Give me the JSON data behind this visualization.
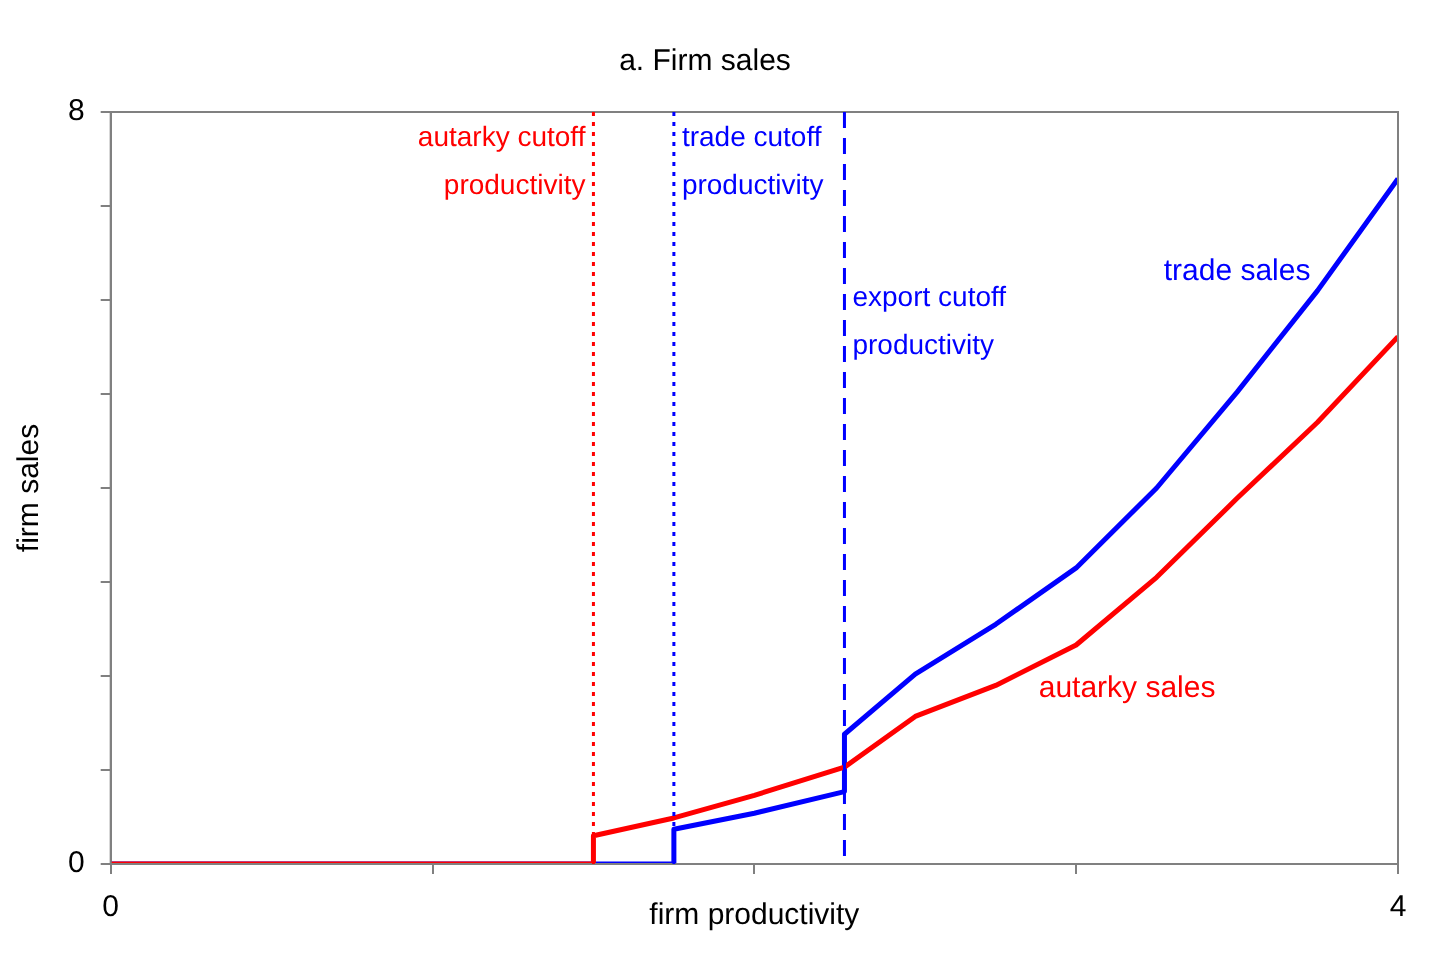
{
  "chart_data": {
    "type": "line",
    "title": "a. Firm sales",
    "xlabel": "firm productivity",
    "ylabel": "firm sales",
    "xlim": [
      0,
      4
    ],
    "xticks": [
      0,
      {
        "value": 1,
        "label": null
      },
      {
        "value": 2,
        "label": null
      },
      {
        "value": 3,
        "label": null
      },
      4
    ],
    "ylim": [
      0,
      8
    ],
    "yticks": [
      0,
      {
        "value": 1,
        "label": null
      },
      {
        "value": 2,
        "label": null
      },
      {
        "value": 3,
        "label": null
      },
      {
        "value": 4,
        "label": null
      },
      {
        "value": 5,
        "label": null
      },
      {
        "value": 6,
        "label": null
      },
      {
        "value": 7,
        "label": null
      },
      8
    ],
    "grid": false,
    "legend": false,
    "marker": "none",
    "series": [
      {
        "name": "autarky sales",
        "color": "#ff0000",
        "x": [
          0,
          1.5,
          1.5,
          1.75,
          2,
          2.28,
          2.5,
          2.75,
          3,
          3.25,
          3.5,
          3.75,
          4
        ],
        "values": [
          0,
          0,
          0.3,
          0.49,
          0.73,
          1.03,
          1.57,
          1.9,
          2.33,
          3.05,
          3.89,
          4.7,
          5.61
        ]
      },
      {
        "name": "trade sales",
        "color": "#0000ff",
        "x": [
          0,
          1.75,
          1.75,
          2,
          2.28,
          2.28,
          2.5,
          2.75,
          3,
          3.25,
          3.5,
          3.75,
          4
        ],
        "values": [
          0,
          0,
          0.37,
          0.54,
          0.77,
          1.38,
          2.02,
          2.55,
          3.15,
          4.0,
          5.02,
          6.1,
          7.29
        ]
      }
    ],
    "ref_lines": [
      {
        "axis": "x",
        "value": 1.5,
        "label": "autarky cutoff productivity",
        "color": "#ff0000",
        "line_style": "dotted"
      },
      {
        "axis": "x",
        "value": 1.75,
        "label": "trade cutoff productivity",
        "color": "#0000ff",
        "line_style": "dotted"
      },
      {
        "axis": "x",
        "value": 2.28,
        "label": "export cutoff productivity",
        "color": "#0000ff",
        "line_style": "dashed"
      }
    ]
  }
}
